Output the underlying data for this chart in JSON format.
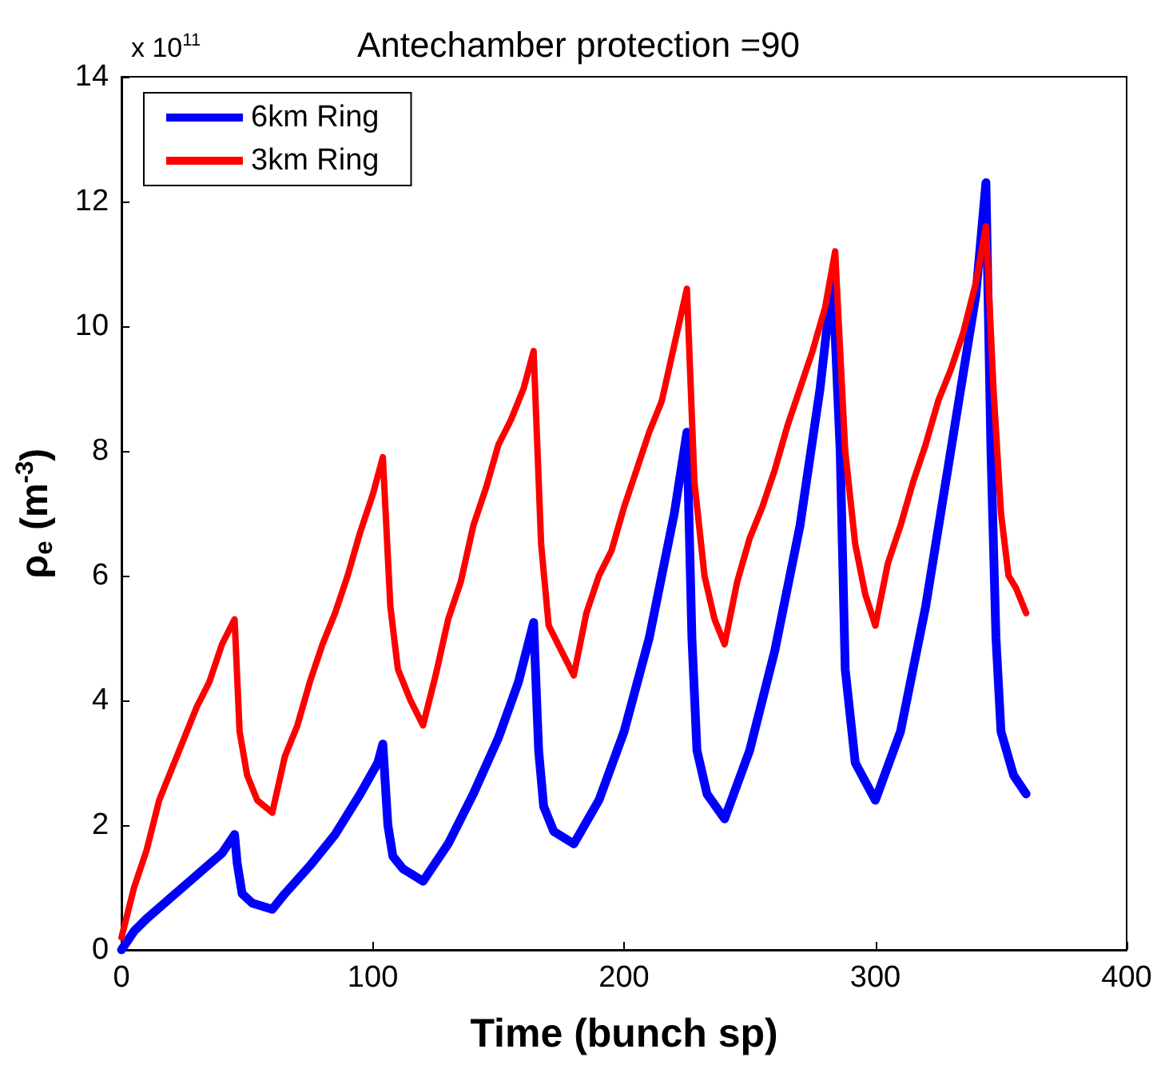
{
  "chart_data": {
    "type": "line",
    "title": "Antechamber protection =90",
    "xlabel": "Time (bunch sp)",
    "ylabel": "ρ$_{e}$ (m$^{-3}$)",
    "annotations": [
      "x 10$^{11}$"
    ],
    "xlim": [
      0,
      400
    ],
    "xticks": [
      0,
      100,
      200,
      300,
      400
    ],
    "ylim": [
      0,
      14
    ],
    "yticks": [
      0,
      2,
      4,
      6,
      8,
      10,
      12,
      14
    ],
    "grid": false,
    "legend": "top left",
    "marker": "none",
    "line_style": "solid",
    "series": [
      {
        "name": "6km Ring",
        "color": "#0000ff",
        "x": [
          0,
          5,
          10,
          20,
          30,
          40,
          45,
          46,
          48,
          52,
          60,
          65,
          75,
          85,
          95,
          102,
          104,
          106,
          108,
          112,
          120,
          130,
          140,
          150,
          158,
          164,
          166,
          168,
          172,
          180,
          190,
          200,
          210,
          220,
          225,
          227,
          229,
          233,
          240,
          250,
          260,
          270,
          278,
          283,
          286,
          288,
          292,
          300,
          310,
          320,
          330,
          340,
          344,
          346,
          348,
          350,
          355,
          360
        ],
        "values": [
          0,
          0.3,
          0.5,
          0.85,
          1.2,
          1.55,
          1.85,
          1.4,
          0.9,
          0.75,
          0.65,
          0.9,
          1.35,
          1.85,
          2.5,
          3.0,
          3.3,
          2.0,
          1.5,
          1.3,
          1.1,
          1.7,
          2.5,
          3.4,
          4.3,
          5.25,
          3.2,
          2.3,
          1.9,
          1.7,
          2.4,
          3.5,
          5.0,
          7.0,
          8.3,
          5.0,
          3.2,
          2.5,
          2.1,
          3.2,
          4.8,
          6.8,
          9.0,
          10.8,
          8.0,
          4.5,
          3.0,
          2.4,
          3.5,
          5.5,
          8.0,
          10.5,
          12.3,
          8.0,
          5.0,
          3.5,
          2.8,
          2.5
        ]
      },
      {
        "name": "3km Ring",
        "color": "#ff0000",
        "x": [
          0,
          5,
          10,
          15,
          20,
          25,
          30,
          35,
          40,
          45,
          47,
          50,
          54,
          60,
          65,
          70,
          75,
          80,
          85,
          90,
          95,
          100,
          104,
          107,
          110,
          115,
          120,
          125,
          130,
          135,
          140,
          145,
          150,
          155,
          160,
          164,
          167,
          170,
          175,
          180,
          185,
          190,
          195,
          200,
          205,
          210,
          215,
          220,
          225,
          228,
          232,
          236,
          240,
          245,
          250,
          255,
          260,
          265,
          270,
          275,
          280,
          284,
          288,
          292,
          296,
          300,
          305,
          310,
          315,
          320,
          325,
          330,
          335,
          340,
          344,
          347,
          350,
          353,
          356,
          360
        ],
        "values": [
          0.2,
          1.0,
          1.6,
          2.4,
          2.9,
          3.4,
          3.9,
          4.3,
          4.9,
          5.3,
          3.5,
          2.8,
          2.4,
          2.2,
          3.1,
          3.6,
          4.3,
          4.9,
          5.4,
          6.0,
          6.7,
          7.3,
          7.9,
          5.5,
          4.5,
          4.0,
          3.6,
          4.4,
          5.3,
          5.9,
          6.8,
          7.4,
          8.1,
          8.5,
          9.0,
          9.6,
          6.5,
          5.2,
          4.8,
          4.4,
          5.4,
          6.0,
          6.4,
          7.1,
          7.7,
          8.3,
          8.8,
          9.7,
          10.6,
          7.5,
          6.0,
          5.3,
          4.9,
          5.9,
          6.6,
          7.1,
          7.7,
          8.4,
          9.0,
          9.6,
          10.3,
          11.2,
          8.0,
          6.5,
          5.7,
          5.2,
          6.2,
          6.8,
          7.5,
          8.1,
          8.8,
          9.3,
          9.9,
          10.7,
          11.6,
          9.0,
          7.0,
          6.0,
          5.8,
          5.4
        ]
      }
    ]
  }
}
